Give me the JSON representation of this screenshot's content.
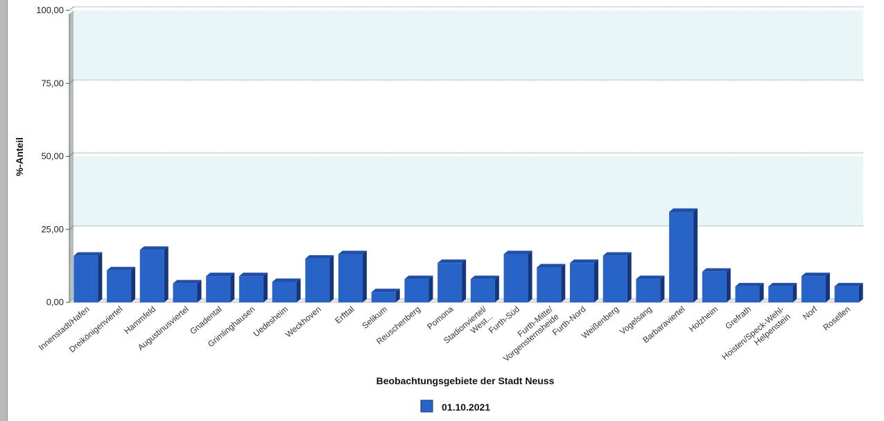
{
  "chart_data": {
    "type": "bar",
    "title": "",
    "xlabel": "Beobachtungsgebiete der Stadt Neuss",
    "ylabel": "%-Anteil",
    "ylim": [
      0,
      100
    ],
    "yticks": [
      "0,00",
      "25,00",
      "50,00",
      "75,00",
      "100,00"
    ],
    "grid": true,
    "legend_position": "bottom-center",
    "categories": [
      "Innenstadt/Hafen",
      "Dreikönigenviertel",
      "Hammfeld",
      "Augustinusviertel",
      "Gnadental",
      "Grimlinghausen",
      "Uedesheim",
      "Weckhoven",
      "Erfttal",
      "Selikum",
      "Reuschenberg",
      "Pomona",
      "Stadionviertel/ West...",
      "Furth-Süd",
      "Furth-Mitte/ Vorgensternsheide",
      "Furth-Nord",
      "Weißenberg",
      "Vogelsang",
      "Barbaraviertel",
      "Holzheim",
      "Grefrath",
      "Hoisten/Speck-Wehl-Helpenstein",
      "Norf",
      "Rosellen"
    ],
    "tick_labels": [
      [
        "Innenstadt/Hafen"
      ],
      [
        "Dreikönigenviertel"
      ],
      [
        "Hammfeld"
      ],
      [
        "Augustinusviertel"
      ],
      [
        "Gnadental"
      ],
      [
        "Grimlinghausen"
      ],
      [
        "Uedesheim"
      ],
      [
        "Weckhoven"
      ],
      [
        "Erfttal"
      ],
      [
        "Selikum"
      ],
      [
        "Reuschenberg"
      ],
      [
        "Pomona"
      ],
      [
        "Stadionviertel/",
        "West..."
      ],
      [
        "Furth-Süd"
      ],
      [
        "Furth-Mitte/",
        "Vorgensternsheide"
      ],
      [
        "Furth-Nord"
      ],
      [
        "Weißenberg"
      ],
      [
        "Vogelsang"
      ],
      [
        "Barbaraviertel"
      ],
      [
        "Holzheim"
      ],
      [
        "Grefrath"
      ],
      [
        "Hoisten/Speck-Wehl-",
        "Helpenstein"
      ],
      [
        "Norf"
      ],
      [
        "Rosellen"
      ]
    ],
    "series": [
      {
        "name": "01.10.2021",
        "values": [
          16,
          11,
          18,
          6.5,
          9,
          9,
          7,
          15,
          16.5,
          3.5,
          8,
          13.5,
          8,
          16.5,
          12,
          13.5,
          16,
          8,
          31,
          10.5,
          5.5,
          5.5,
          9,
          5.5
        ]
      }
    ],
    "colors": {
      "bar_front": "#2863c7",
      "bar_top": "#1f4fa8",
      "bar_side": "#15367a",
      "band": "#e8f6f7",
      "grid": "#7a8b8b",
      "wall": "#b4bcbd"
    }
  }
}
